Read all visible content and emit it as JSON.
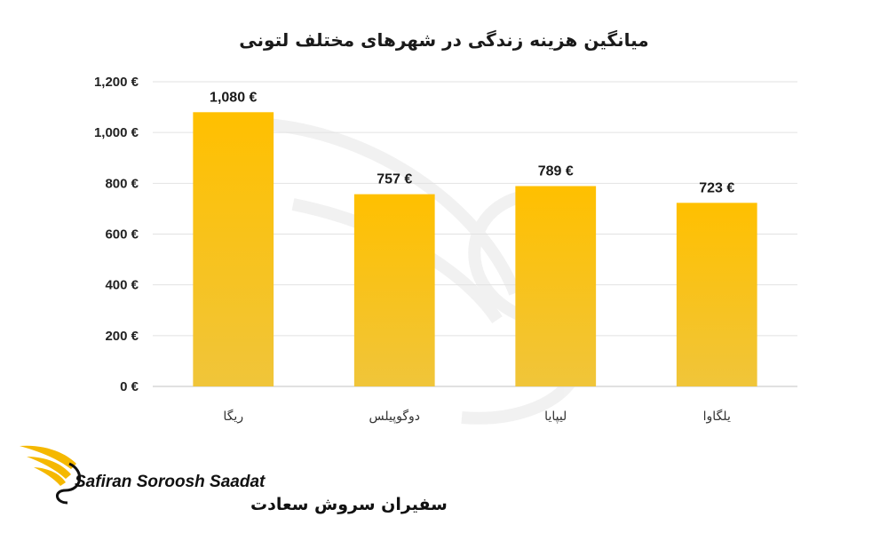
{
  "chart_data": {
    "type": "bar",
    "title": "میانگین هزینه زندگی در شهرهای مختلف لتونی",
    "categories": [
      "ریگا",
      "دوگوپیلس",
      "لیپایا",
      "یلگاوا"
    ],
    "values": [
      1080,
      757,
      789,
      723
    ],
    "data_labels": [
      "1,080 €",
      "757 €",
      "789 €",
      "723 €"
    ],
    "y_ticks": [
      0,
      200,
      400,
      600,
      800,
      1000,
      1200
    ],
    "y_tick_labels": [
      "0 €",
      "200 €",
      "400 €",
      "600 €",
      "800 €",
      "1,000 €",
      "1,200 €"
    ],
    "ylim": [
      0,
      1200
    ],
    "grid": true,
    "legend": "none",
    "bar_color_top": "#ffc000",
    "bar_color_bottom": "#f0c53a"
  },
  "logo": {
    "name_en": "Safiran Soroosh Saadat",
    "name_fa": "سفیران سروش سعادت",
    "accent": "#f5b800"
  }
}
